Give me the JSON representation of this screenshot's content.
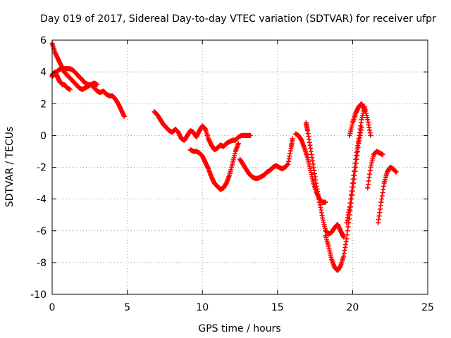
{
  "chart_data": {
    "type": "scatter",
    "title": "Day 019 of 2017, Sidereal Day-to-day VTEC variation (SDTVAR) for receiver ufpr",
    "xlabel": "GPS time / hours",
    "ylabel": "SDTVAR / TECUs",
    "xlim": [
      0,
      25
    ],
    "ylim": [
      -10,
      6
    ],
    "x_ticks": [
      "0",
      "5",
      "10",
      "15",
      "20",
      "25"
    ],
    "y_ticks": [
      "-10",
      "-8",
      "-6",
      "-4",
      "-2",
      "0",
      "2",
      "4",
      "6"
    ],
    "grid": true,
    "marker": "+",
    "color": "#ff0000",
    "series": [
      {
        "x": [
          0.0,
          0.2,
          0.4,
          0.6,
          0.8,
          1.0,
          1.2,
          1.4,
          1.6,
          1.8,
          2.0,
          2.2,
          2.4,
          2.6,
          2.8,
          3.0,
          3.2,
          3.4,
          3.6,
          3.8,
          4.0,
          4.2,
          4.4,
          4.6,
          4.8
        ],
        "y": [
          5.8,
          5.2,
          4.8,
          4.4,
          4.0,
          3.8,
          3.6,
          3.4,
          3.2,
          3.0,
          2.9,
          3.0,
          3.1,
          3.2,
          3.0,
          2.8,
          2.7,
          2.8,
          2.6,
          2.5,
          2.5,
          2.3,
          2.0,
          1.6,
          1.2
        ]
      },
      {
        "x": [
          0.0,
          0.2,
          0.4,
          0.6,
          0.8,
          1.0,
          1.2,
          1.4,
          1.6,
          1.8,
          2.0,
          2.2,
          2.4,
          2.6,
          2.8,
          3.0
        ],
        "y": [
          3.7,
          3.9,
          4.1,
          4.2,
          4.2,
          4.2,
          4.2,
          4.1,
          3.9,
          3.7,
          3.5,
          3.3,
          3.2,
          3.2,
          3.3,
          3.2
        ]
      },
      {
        "x": [
          0.0,
          0.1,
          0.2,
          0.3,
          0.4,
          0.5,
          0.6,
          0.7,
          0.8,
          0.9,
          1.0,
          1.2
        ],
        "y": [
          3.8,
          3.9,
          4.0,
          3.8,
          3.6,
          3.4,
          3.3,
          3.2,
          3.2,
          3.1,
          3.0,
          2.9
        ]
      },
      {
        "x": [
          6.8,
          7.0,
          7.2,
          7.4,
          7.6,
          7.8,
          8.0,
          8.2,
          8.4,
          8.6,
          8.8,
          9.0,
          9.2,
          9.4,
          9.6,
          9.8,
          10.0,
          10.2,
          10.4,
          10.6,
          10.8,
          11.0,
          11.2,
          11.4,
          11.6,
          11.8,
          12.0,
          12.2,
          12.4,
          12.6,
          12.8,
          13.0,
          13.2
        ],
        "y": [
          1.5,
          1.3,
          1.0,
          0.7,
          0.5,
          0.3,
          0.2,
          0.4,
          0.2,
          -0.2,
          -0.3,
          0.0,
          0.3,
          0.2,
          -0.1,
          0.3,
          0.6,
          0.4,
          -0.2,
          -0.6,
          -0.9,
          -0.8,
          -0.6,
          -0.7,
          -0.5,
          -0.4,
          -0.3,
          -0.3,
          -0.1,
          0.0,
          0.0,
          0.0,
          0.0
        ]
      },
      {
        "x": [
          9.2,
          9.4,
          9.6,
          9.8,
          10.0,
          10.2,
          10.4,
          10.6,
          10.8,
          11.0,
          11.2,
          11.4,
          11.6,
          11.8,
          12.0,
          12.2,
          12.4
        ],
        "y": [
          -0.9,
          -1.0,
          -1.0,
          -1.1,
          -1.3,
          -1.7,
          -2.1,
          -2.6,
          -3.0,
          -3.2,
          -3.4,
          -3.3,
          -3.0,
          -2.5,
          -1.8,
          -1.0,
          -0.5
        ]
      },
      {
        "x": [
          12.5,
          12.7,
          12.9,
          13.1,
          13.3,
          13.5,
          13.7,
          13.9,
          14.1,
          14.3,
          14.5,
          14.7,
          14.9,
          15.1,
          15.3,
          15.5,
          15.7,
          15.9,
          16.0
        ],
        "y": [
          -1.5,
          -1.8,
          -2.1,
          -2.4,
          -2.6,
          -2.7,
          -2.7,
          -2.6,
          -2.5,
          -2.3,
          -2.2,
          -2.0,
          -1.9,
          -2.0,
          -2.1,
          -2.0,
          -1.8,
          -0.8,
          -0.2
        ]
      },
      {
        "x": [
          16.2,
          16.4,
          16.6,
          16.8,
          17.0,
          17.2,
          17.4,
          17.6,
          17.8,
          18.0,
          18.2
        ],
        "y": [
          0.1,
          0.0,
          -0.3,
          -0.8,
          -1.4,
          -2.2,
          -3.0,
          -3.6,
          -4.0,
          -4.2,
          -4.2
        ]
      },
      {
        "x": [
          16.9,
          17.0,
          17.2,
          17.4,
          17.6,
          17.8,
          18.0,
          18.2,
          18.4,
          18.6,
          18.8,
          19.0,
          19.2,
          19.4
        ],
        "y": [
          0.8,
          0.3,
          -0.8,
          -2.0,
          -3.2,
          -4.2,
          -5.2,
          -6.0,
          -6.2,
          -6.1,
          -5.8,
          -5.6,
          -6.0,
          -6.4
        ]
      },
      {
        "x": [
          18.2,
          18.4,
          18.6,
          18.8,
          19.0,
          19.2,
          19.4,
          19.6,
          19.8,
          20.0,
          20.2,
          20.4,
          20.6
        ],
        "y": [
          -6.3,
          -7.0,
          -7.8,
          -8.3,
          -8.5,
          -8.2,
          -7.6,
          -6.5,
          -5.0,
          -3.5,
          -2.0,
          -0.5,
          0.5
        ]
      },
      {
        "x": [
          19.6,
          19.8,
          20.0,
          20.2,
          20.4,
          20.6,
          20.8,
          21.0,
          21.2
        ],
        "y": [
          -5.5,
          -4.5,
          -3.0,
          -1.5,
          -0.2,
          1.0,
          1.8,
          1.0,
          0.0
        ]
      },
      {
        "x": [
          19.8,
          20.0,
          20.2,
          20.4,
          20.6,
          20.8
        ],
        "y": [
          0.0,
          0.8,
          1.4,
          1.8,
          2.0,
          1.6
        ]
      },
      {
        "x": [
          21.0,
          21.2,
          21.4,
          21.6,
          21.8,
          22.0
        ],
        "y": [
          -3.3,
          -2.0,
          -1.2,
          -1.0,
          -1.1,
          -1.2
        ]
      },
      {
        "x": [
          21.7,
          21.9,
          22.1,
          22.3,
          22.5,
          22.7,
          22.9
        ],
        "y": [
          -5.5,
          -4.2,
          -3.0,
          -2.3,
          -2.0,
          -2.1,
          -2.3
        ]
      }
    ]
  }
}
